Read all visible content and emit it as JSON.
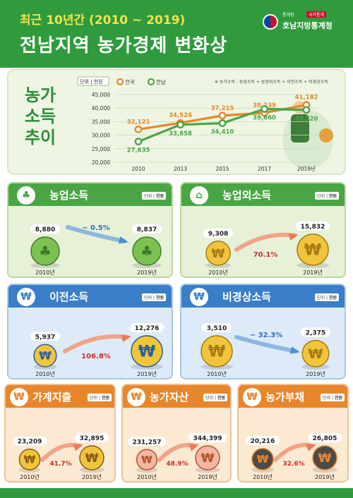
{
  "header": {
    "subtitle": "최근 10년간 (2010 ~ 2019)",
    "title": "전남지역 농가경제 변화상",
    "logo_small": "통계청",
    "logo_badge": "국가통계",
    "logo_name": "호남지방통계청"
  },
  "trend": {
    "label_lines": [
      "농가",
      "소득",
      "추이"
    ],
    "unit_label": "단위",
    "unit_value": "천원",
    "note": "※ 농가소득 : 농업소득 + 농업외소득 + 이전소득 + 비경상소득"
  },
  "colors": {
    "nationwide": "#e8862b",
    "jeonnam": "#4aa545",
    "increase": "#d52b2b",
    "decrease": "#2f6fb6"
  },
  "chart_data": [
    {
      "type": "line",
      "categories": [
        "2010",
        "2013",
        "2015",
        "2017",
        "2019년"
      ],
      "series": [
        {
          "name": "전국",
          "values": [
            32121,
            34524,
            37215,
            38239,
            41182
          ]
        },
        {
          "name": "전남",
          "values": [
            27635,
            33858,
            34410,
            39660,
            39320
          ]
        }
      ],
      "yticks": [
        "20,000",
        "25,000",
        "30,000",
        "35,000",
        "40,000",
        "45,000"
      ],
      "ylim": [
        20000,
        45000
      ],
      "grid": true,
      "legend": "top-left"
    },
    {
      "type": "bar",
      "title": "농업소득",
      "unit_label": "단위",
      "unit_value": "천원",
      "categories": [
        "2010년",
        "2019년"
      ],
      "values": [
        8880,
        8837
      ],
      "change": "− 0.5%",
      "direction": "down"
    },
    {
      "type": "bar",
      "title": "농업외소득",
      "unit_label": "단위",
      "unit_value": "천원",
      "categories": [
        "2010년",
        "2019년"
      ],
      "values": [
        9308,
        15832
      ],
      "change": "70.1%",
      "direction": "up"
    },
    {
      "type": "bar",
      "title": "이전소득",
      "unit_label": "단위",
      "unit_value": "천원",
      "categories": [
        "2010년",
        "2019년"
      ],
      "values": [
        5937,
        12276
      ],
      "change": "106.8%",
      "direction": "up"
    },
    {
      "type": "bar",
      "title": "비경상소득",
      "unit_label": "단위",
      "unit_value": "천원",
      "categories": [
        "2010년",
        "2019년"
      ],
      "values": [
        3510,
        2375
      ],
      "change": "− 32.3%",
      "direction": "down"
    },
    {
      "type": "bar",
      "title": "가계지출",
      "unit_label": "단위",
      "unit_value": "천원",
      "categories": [
        "2010년",
        "2019년"
      ],
      "values": [
        23209,
        32895
      ],
      "change": "41.7%",
      "direction": "up"
    },
    {
      "type": "bar",
      "title": "농가자산",
      "unit_label": "단위",
      "unit_value": "천원",
      "categories": [
        "2010년",
        "2019년"
      ],
      "values": [
        231257,
        344399
      ],
      "change": "48.9%",
      "direction": "up"
    },
    {
      "type": "bar",
      "title": "농가부채",
      "unit_label": "단위",
      "unit_value": "천원",
      "categories": [
        "2010년",
        "2019년"
      ],
      "values": [
        20216,
        26805
      ],
      "change": "32.6%",
      "direction": "up"
    }
  ],
  "icons": {
    "agri": "scarecrow-icon",
    "nonagri": "barn-icon",
    "transfer": "won-bag-icon",
    "irregular": "won-coin-icon",
    "expense": "won-cycle-icon",
    "assets": "won-piggy-icon",
    "debt": "won-bomb-icon"
  }
}
